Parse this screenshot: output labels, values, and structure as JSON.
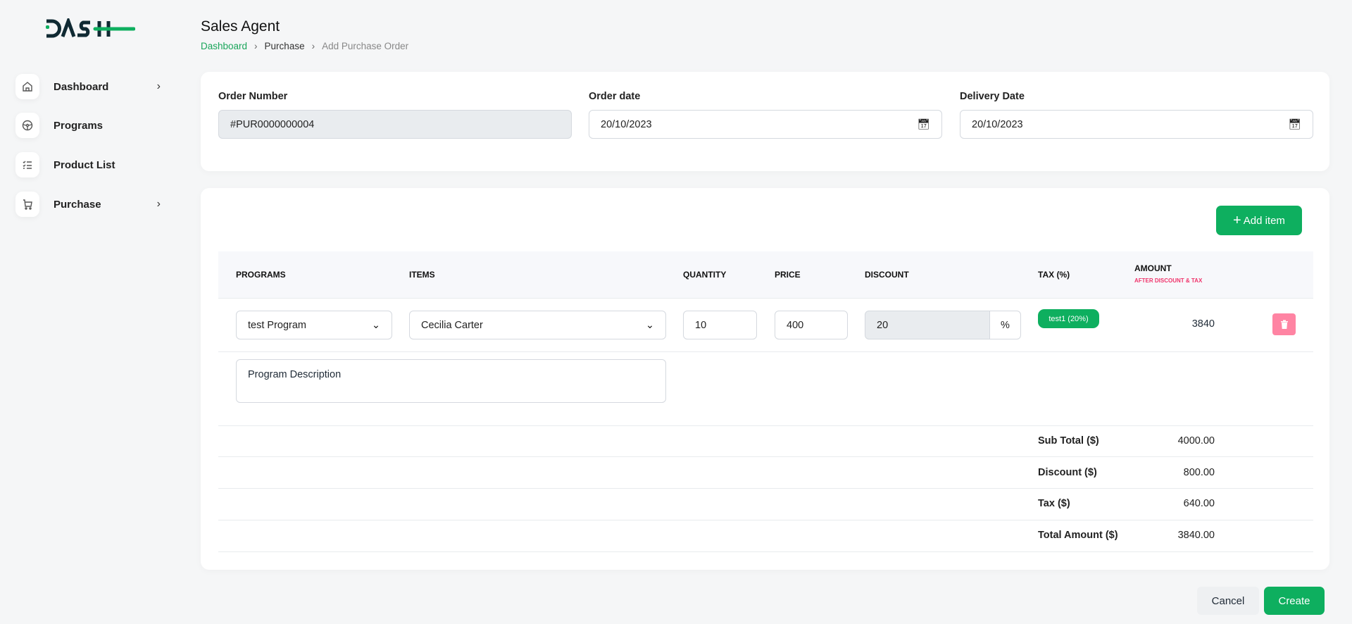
{
  "app": {
    "logo_text": "DASH",
    "title": "Sales Agent"
  },
  "breadcrumb": [
    "Dashboard",
    "Purchase",
    "Add Purchase Order"
  ],
  "sidebar": {
    "items": [
      {
        "label": "Dashboard",
        "icon": "home-icon",
        "has_chevron": true
      },
      {
        "label": "Programs",
        "icon": "steering-wheel-icon",
        "has_chevron": false
      },
      {
        "label": "Product List",
        "icon": "checklist-icon",
        "has_chevron": false
      },
      {
        "label": "Purchase",
        "icon": "cart-icon",
        "has_chevron": true
      }
    ]
  },
  "order": {
    "number_label": "Order Number",
    "number_value": "#PUR0000000004",
    "order_date_label": "Order date",
    "order_date_value": "20/10/2023",
    "delivery_date_label": "Delivery Date",
    "delivery_date_value": "20/10/2023"
  },
  "items_table": {
    "add_item_label": "Add item",
    "headers": {
      "programs": "PROGRAMS",
      "items": "ITEMS",
      "quantity": "QUANTITY",
      "price": "PRICE",
      "discount": "DISCOUNT",
      "tax": "TAX (%)",
      "amount": "AMOUNT",
      "amount_sub": "AFTER DISCOUNT & TAX"
    },
    "rows": [
      {
        "program": "test Program",
        "item": "Cecilia Carter",
        "quantity": "10",
        "price": "400",
        "discount": "20",
        "discount_unit": "%",
        "tax_badge": "test1 (20%)",
        "amount": "3840",
        "description": "Program Description"
      }
    ]
  },
  "totals": [
    {
      "label": "Sub Total ($)",
      "value": "4000.00"
    },
    {
      "label": "Discount ($)",
      "value": "800.00"
    },
    {
      "label": "Tax ($)",
      "value": "640.00"
    },
    {
      "label": "Total Amount ($)",
      "value": "3840.00"
    }
  ],
  "actions": {
    "cancel": "Cancel",
    "create": "Create"
  },
  "colors": {
    "accent": "#0eaf5f",
    "danger": "#ff84a3",
    "subheader": "#f0346b"
  }
}
